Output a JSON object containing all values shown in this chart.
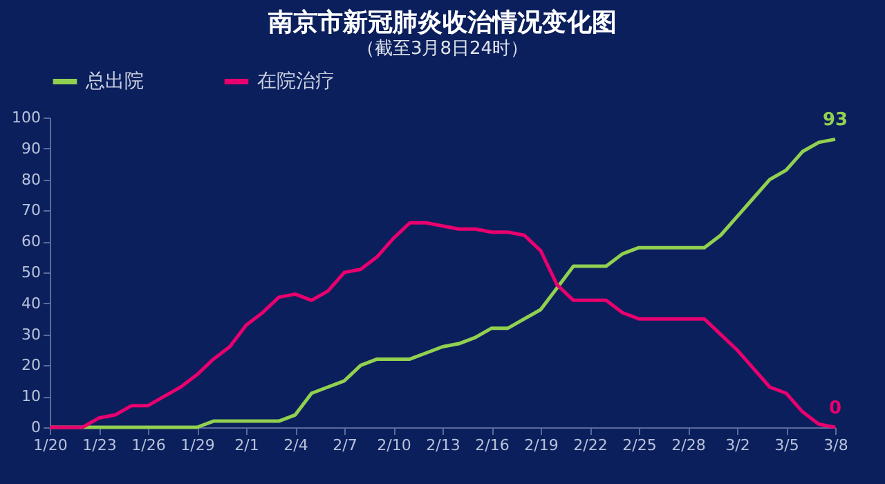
{
  "chart_data": {
    "type": "line",
    "title": "南京市新冠肺炎收治情况变化图",
    "subtitle": "（截至3月8日24时）",
    "categories": [
      "1/20",
      null,
      null,
      "1/23",
      null,
      null,
      "1/26",
      null,
      null,
      "1/29",
      null,
      null,
      "2/1",
      null,
      null,
      "2/4",
      null,
      null,
      "2/7",
      null,
      null,
      "2/10",
      null,
      null,
      "2/13",
      null,
      null,
      "2/16",
      null,
      null,
      "2/19",
      null,
      null,
      "2/22",
      null,
      null,
      "2/25",
      null,
      null,
      "2/28",
      null,
      null,
      "3/2",
      null,
      null,
      "3/5",
      null,
      null,
      "3/8"
    ],
    "series": [
      {
        "name": "总出院",
        "color": "#92d050",
        "values": [
          0,
          0,
          0,
          0,
          0,
          0,
          0,
          0,
          0,
          0,
          2,
          2,
          2,
          2,
          2,
          4,
          11,
          13,
          15,
          20,
          22,
          22,
          22,
          24,
          26,
          27,
          29,
          32,
          32,
          35,
          38,
          45,
          52,
          52,
          52,
          56,
          58,
          58,
          58,
          58,
          58,
          62,
          68,
          74,
          80,
          83,
          89,
          92,
          93
        ],
        "value_labels": [
          null,
          null,
          null,
          null,
          null,
          null,
          null,
          null,
          null,
          null,
          null,
          null,
          null,
          null,
          null,
          null,
          null,
          null,
          null,
          null,
          null,
          null,
          null,
          null,
          null,
          null,
          null,
          null,
          null,
          null,
          null,
          null,
          null,
          null,
          null,
          null,
          null,
          null,
          null,
          null,
          null,
          null,
          null,
          null,
          null,
          null,
          null,
          null,
          "93"
        ]
      },
      {
        "name": "在院治疗",
        "color": "#e8006f",
        "values": [
          0,
          0,
          0,
          3,
          4,
          7,
          7,
          10,
          13,
          17,
          22,
          26,
          33,
          37,
          42,
          43,
          41,
          44,
          50,
          51,
          55,
          61,
          66,
          66,
          65,
          64,
          64,
          63,
          63,
          62,
          57,
          46,
          41,
          41,
          41,
          37,
          35,
          35,
          35,
          35,
          35,
          30,
          25,
          19,
          13,
          11,
          5,
          1,
          0
        ],
        "value_labels": [
          null,
          null,
          null,
          null,
          null,
          null,
          null,
          null,
          null,
          null,
          null,
          null,
          null,
          null,
          null,
          null,
          null,
          null,
          null,
          null,
          null,
          null,
          null,
          null,
          null,
          null,
          null,
          null,
          null,
          null,
          null,
          null,
          null,
          null,
          null,
          null,
          null,
          null,
          null,
          null,
          null,
          null,
          null,
          null,
          null,
          null,
          null,
          null,
          "0"
        ]
      }
    ],
    "ylim": [
      0,
      100
    ],
    "yticks": [
      0,
      10,
      20,
      30,
      40,
      50,
      60,
      70,
      80,
      90,
      100
    ],
    "grid": false,
    "legend": "top",
    "marker": "none",
    "line_style": "solid"
  }
}
